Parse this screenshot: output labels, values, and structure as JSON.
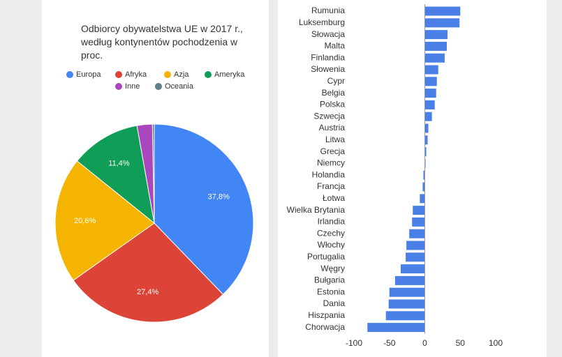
{
  "chart_data": [
    {
      "type": "pie",
      "title": "Odbiorcy obywatelstwa UE w 2017 r., według kontynentów pochodzenia w proc.",
      "categories": [
        "Europa",
        "Afryka",
        "Azja",
        "Ameryka",
        "Inne",
        "Oceania"
      ],
      "values": [
        37.8,
        27.4,
        20.6,
        11.4,
        2.5,
        0.3
      ],
      "value_labels": [
        "37,8%",
        "27,4%",
        "20,6%",
        "11,4%",
        null,
        null
      ],
      "colors": [
        "#4285f4",
        "#db4437",
        "#f4b400",
        "#0f9d58",
        "#ab47bc",
        "#5f7d8c"
      ]
    },
    {
      "type": "bar",
      "orientation": "horizontal",
      "categories": [
        "Rumunia",
        "Luksemburg",
        "Słowacja",
        "Malta",
        "Finlandia",
        "Słowenia",
        "Cypr",
        "Belgia",
        "Polska",
        "Szwecja",
        "Austria",
        "Litwa",
        "Grecja",
        "Niemcy",
        "Holandia",
        "Francja",
        "Łotwa",
        "Wielka Brytania",
        "Irlandia",
        "Czechy",
        "Włochy",
        "Portugalia",
        "Węgry",
        "Bułgaria",
        "Estonia",
        "Dania",
        "Hiszpania",
        "Chorwacja"
      ],
      "values": [
        50,
        49,
        32,
        31,
        28,
        19,
        17,
        16,
        14,
        10,
        5,
        4,
        2,
        1,
        -2,
        -3,
        -7,
        -17,
        -18,
        -22,
        -26,
        -27,
        -34,
        -42,
        -50,
        -51,
        -55,
        -81
      ],
      "color": "#4a7fe8",
      "xlim": [
        -100,
        100
      ],
      "xticks": [
        -100,
        -50,
        0,
        50,
        100
      ]
    }
  ]
}
